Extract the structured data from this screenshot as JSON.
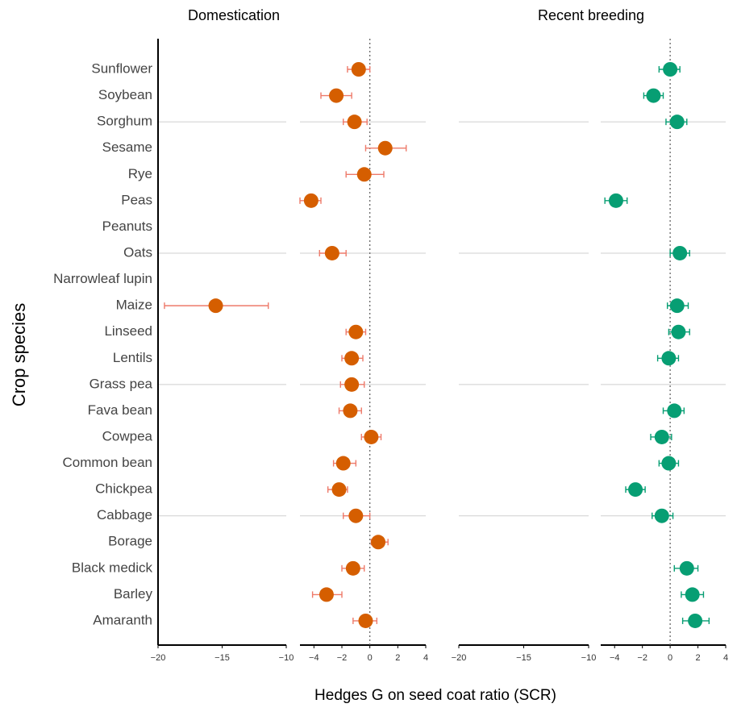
{
  "chart_data": [
    {
      "type": "forest",
      "title": "Domestication",
      "color": "#d55e00",
      "error_color": "#ee7a6a",
      "refline": 0,
      "categories": [
        "Sunflower",
        "Soybean",
        "Sorghum",
        "Sesame",
        "Rye",
        "Peas",
        "Peanuts",
        "Oats",
        "Narrowleaf lupin",
        "Maize",
        "Linseed",
        "Lentils",
        "Grass pea",
        "Fava bean",
        "Cowpea",
        "Common bean",
        "Chickpea",
        "Cabbage",
        "Borage",
        "Black medick",
        "Barley",
        "Amaranth"
      ],
      "values": [
        -0.8,
        -2.4,
        -1.1,
        1.1,
        -0.4,
        -4.2,
        null,
        -2.7,
        null,
        -15.5,
        -1.0,
        -1.3,
        -1.3,
        -1.4,
        0.1,
        -1.9,
        -2.2,
        -1.0,
        0.6,
        -1.2,
        -3.1,
        -0.3
      ],
      "lower": [
        -1.6,
        -3.5,
        -1.9,
        -0.3,
        -1.7,
        -5.0,
        null,
        -3.6,
        null,
        -19.5,
        -1.7,
        -2.0,
        -2.1,
        -2.2,
        -0.6,
        -2.6,
        -3.0,
        -1.9,
        0.1,
        -2.0,
        -4.1,
        -1.2
      ],
      "upper": [
        0,
        -1.3,
        -0.2,
        2.6,
        1.0,
        -3.5,
        null,
        -1.7,
        null,
        -11.4,
        -0.3,
        -0.5,
        -0.4,
        -0.6,
        0.8,
        -1.0,
        -1.6,
        0,
        1.3,
        -0.4,
        -2.0,
        0.5
      ],
      "x_segments": [
        {
          "xlim": [
            -20,
            -10
          ],
          "xticks": [
            {
              "value": -20,
              "label": "−20"
            },
            {
              "value": -15,
              "label": "−15"
            },
            {
              "value": -10,
              "label": "−10"
            }
          ]
        },
        {
          "xlim": [
            -5,
            4
          ],
          "xticks": [
            {
              "value": -4,
              "label": "−4"
            },
            {
              "value": -2,
              "label": "−2"
            },
            0,
            2,
            4
          ]
        }
      ]
    },
    {
      "type": "forest",
      "title": "Recent breeding",
      "color": "#079e73",
      "error_color": "#079e73",
      "refline": 0,
      "categories": [
        "Sunflower",
        "Soybean",
        "Sorghum",
        "Sesame",
        "Rye",
        "Peas",
        "Peanuts",
        "Oats",
        "Narrowleaf lupin",
        "Maize",
        "Linseed",
        "Lentils",
        "Grass pea",
        "Fava bean",
        "Cowpea",
        "Common bean",
        "Chickpea",
        "Cabbage",
        "Borage",
        "Black medick",
        "Barley",
        "Amaranth"
      ],
      "values": [
        0,
        -1.2,
        0.5,
        null,
        null,
        -3.9,
        null,
        0.7,
        null,
        0.5,
        0.6,
        -0.1,
        null,
        0.3,
        -0.6,
        -0.1,
        -2.5,
        -0.6,
        null,
        1.2,
        1.6,
        1.8
      ],
      "lower": [
        -0.8,
        -1.9,
        -0.3,
        null,
        null,
        -4.7,
        null,
        0,
        null,
        -0.2,
        -0.1,
        -0.9,
        null,
        -0.5,
        -1.4,
        -0.8,
        -3.2,
        -1.3,
        null,
        0.3,
        0.8,
        0.9
      ],
      "upper": [
        0.7,
        -0.5,
        1.2,
        null,
        null,
        -3.1,
        null,
        1.4,
        null,
        1.3,
        1.4,
        0.6,
        null,
        1.0,
        0.1,
        0.6,
        -1.8,
        0.2,
        null,
        2.0,
        2.4,
        2.8
      ],
      "x_segments": [
        {
          "xlim": [
            -20,
            -10
          ],
          "xticks": [
            {
              "value": -20,
              "label": "−20"
            },
            {
              "value": -15,
              "label": "−15"
            },
            {
              "value": -10,
              "label": "−10"
            }
          ]
        },
        {
          "xlim": [
            -5,
            4
          ],
          "xticks": [
            {
              "value": -4,
              "label": "−4"
            },
            {
              "value": -2,
              "label": "−2"
            },
            0,
            2,
            4
          ]
        }
      ]
    }
  ],
  "ylabel": "Crop species",
  "xlabel": "Hedges G on seed coat ratio (SCR)"
}
